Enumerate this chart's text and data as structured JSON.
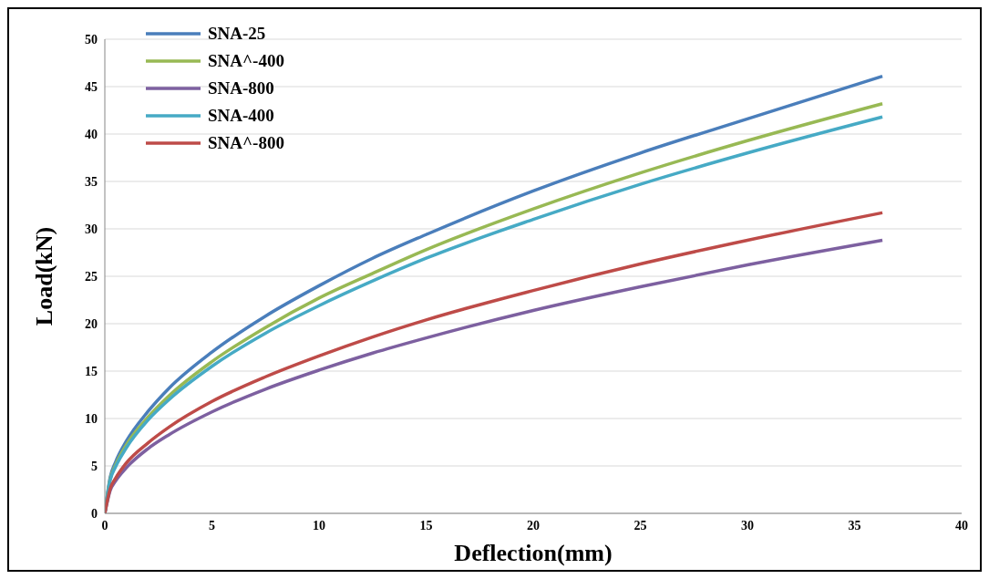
{
  "chart_data": {
    "type": "line",
    "xlabel": "Deflection(mm)",
    "ylabel": "Load(kN)",
    "x": [
      0,
      0.25,
      0.5,
      1,
      2,
      3,
      5,
      7.5,
      10,
      12.5,
      15,
      20,
      25,
      30,
      36.3
    ],
    "series": [
      {
        "name": "SNA-25",
        "color": "#4a7ebb",
        "values": [
          0,
          3.8,
          5.4,
          7.6,
          10.7,
          13.2,
          17,
          20.8,
          24,
          26.9,
          29.4,
          34,
          38,
          41.6,
          46.1
        ]
      },
      {
        "name": "SNA^-400",
        "color": "#98b954",
        "values": [
          0,
          3.6,
          5.1,
          7.2,
          10.1,
          12.4,
          16,
          19.6,
          22.7,
          25.3,
          27.8,
          32.1,
          35.9,
          39.3,
          43.2
        ]
      },
      {
        "name": "SNA-800",
        "color": "#7d60a0",
        "values": [
          0,
          2.4,
          3.4,
          4.8,
          6.8,
          8.3,
          10.7,
          13.1,
          15.1,
          16.9,
          18.5,
          21.4,
          23.9,
          26.2,
          28.8
        ]
      },
      {
        "name": "SNA-400",
        "color": "#46aac5",
        "values": [
          0,
          3.5,
          4.9,
          6.9,
          9.8,
          12,
          15.5,
          19,
          21.9,
          24.5,
          26.9,
          31,
          34.7,
          38,
          41.8
        ]
      },
      {
        "name": "SNA^-800",
        "color": "#be4b48",
        "values": [
          0,
          2.6,
          3.7,
          5.3,
          7.4,
          9.1,
          11.8,
          14.4,
          16.6,
          18.6,
          20.4,
          23.5,
          26.3,
          28.8,
          31.7
        ]
      }
    ],
    "xlim": [
      0,
      40
    ],
    "xticks": [
      0,
      5,
      10,
      15,
      20,
      25,
      30,
      35,
      40
    ],
    "ylim": [
      0,
      50
    ],
    "yticks": [
      0,
      5,
      10,
      15,
      20,
      25,
      30,
      35,
      40,
      45,
      50
    ],
    "grid": "y",
    "legend": "top left",
    "marker": "none",
    "line_style": "solid"
  }
}
